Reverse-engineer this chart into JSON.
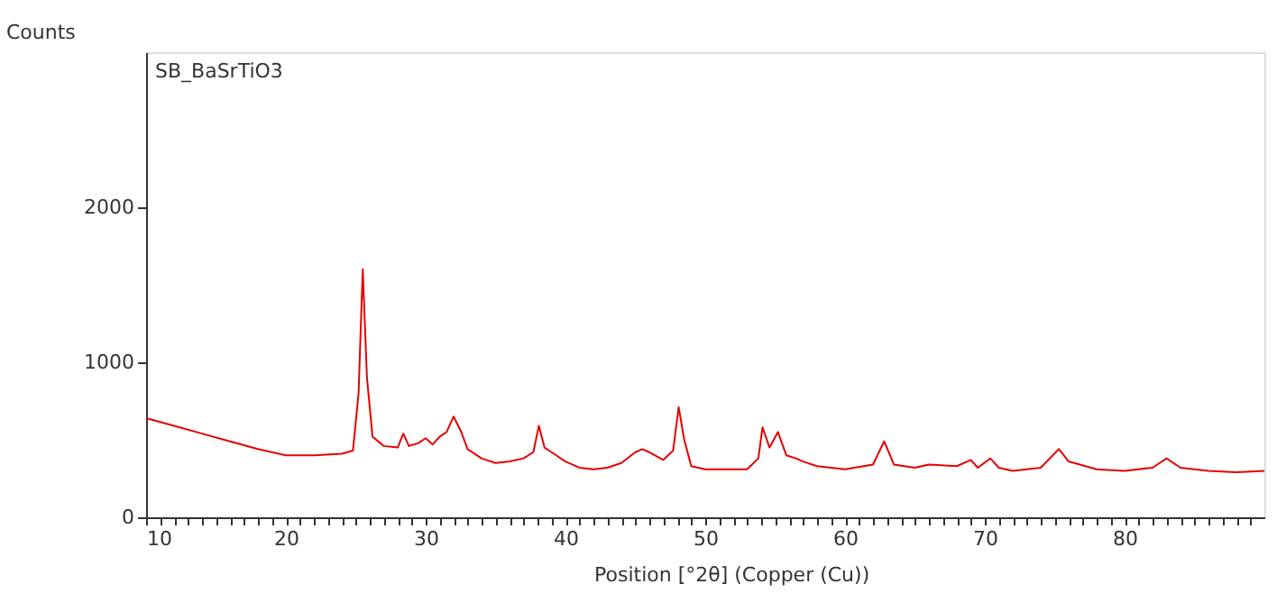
{
  "chart_data": {
    "type": "line",
    "ylabel": "Counts",
    "xlabel": "Position [°2θ] (Copper (Cu))",
    "annotations": [
      "SB_BaSrTiO3"
    ],
    "x": [
      10,
      12,
      14,
      16,
      18,
      20,
      22,
      24,
      24.8,
      25.2,
      25.5,
      25.8,
      26.2,
      27,
      28,
      28.4,
      28.8,
      29.5,
      30,
      30.5,
      31,
      31.5,
      32,
      32.5,
      33,
      34,
      35,
      36,
      37,
      37.7,
      38.1,
      38.5,
      39,
      40,
      41,
      42,
      43,
      44,
      45,
      45.5,
      46,
      47,
      47.7,
      48.1,
      48.5,
      49,
      50,
      52,
      53,
      53.8,
      54.1,
      54.6,
      55.2,
      55.8,
      56.5,
      57,
      58,
      60,
      62,
      62.8,
      63.5,
      65,
      66,
      68,
      69,
      69.5,
      70.4,
      71,
      72,
      74,
      75.3,
      76,
      78,
      80,
      82,
      83,
      84,
      86,
      88,
      90
    ],
    "series": [
      {
        "color": "#e60000",
        "values": [
          640,
          590,
          540,
          490,
          440,
          400,
          400,
          410,
          430,
          800,
          1600,
          900,
          520,
          460,
          450,
          540,
          460,
          480,
          510,
          470,
          520,
          550,
          650,
          560,
          440,
          380,
          350,
          360,
          380,
          420,
          590,
          450,
          420,
          360,
          320,
          310,
          320,
          350,
          420,
          440,
          420,
          370,
          430,
          710,
          500,
          330,
          310,
          310,
          310,
          380,
          580,
          450,
          550,
          400,
          380,
          360,
          330,
          310,
          340,
          490,
          340,
          320,
          340,
          330,
          370,
          320,
          380,
          320,
          300,
          320,
          440,
          360,
          310,
          300,
          320,
          380,
          320,
          300,
          290,
          300
        ]
      }
    ],
    "xlim": [
      10,
      90
    ],
    "ylim": [
      0,
      3000
    ],
    "xticks": [
      10,
      {
        "value": 11,
        "label": null
      },
      {
        "value": 12,
        "label": null
      },
      {
        "value": 13,
        "label": null
      },
      {
        "value": 14,
        "label": null
      },
      {
        "value": 15,
        "label": null
      },
      {
        "value": 16,
        "label": null
      },
      {
        "value": 17,
        "label": null
      },
      {
        "value": 18,
        "label": null
      },
      {
        "value": 19,
        "label": null
      },
      20,
      {
        "value": 21,
        "label": null
      },
      {
        "value": 22,
        "label": null
      },
      {
        "value": 23,
        "label": null
      },
      {
        "value": 24,
        "label": null
      },
      {
        "value": 25,
        "label": null
      },
      {
        "value": 26,
        "label": null
      },
      {
        "value": 27,
        "label": null
      },
      {
        "value": 28,
        "label": null
      },
      {
        "value": 29,
        "label": null
      },
      30,
      {
        "value": 31,
        "label": null
      },
      {
        "value": 32,
        "label": null
      },
      {
        "value": 33,
        "label": null
      },
      {
        "value": 34,
        "label": null
      },
      {
        "value": 35,
        "label": null
      },
      {
        "value": 36,
        "label": null
      },
      {
        "value": 37,
        "label": null
      },
      {
        "value": 38,
        "label": null
      },
      {
        "value": 39,
        "label": null
      },
      40,
      {
        "value": 41,
        "label": null
      },
      {
        "value": 42,
        "label": null
      },
      {
        "value": 43,
        "label": null
      },
      {
        "value": 44,
        "label": null
      },
      {
        "value": 45,
        "label": null
      },
      {
        "value": 46,
        "label": null
      },
      {
        "value": 47,
        "label": null
      },
      {
        "value": 48,
        "label": null
      },
      {
        "value": 49,
        "label": null
      },
      50,
      {
        "value": 51,
        "label": null
      },
      {
        "value": 52,
        "label": null
      },
      {
        "value": 53,
        "label": null
      },
      {
        "value": 54,
        "label": null
      },
      {
        "value": 55,
        "label": null
      },
      {
        "value": 56,
        "label": null
      },
      {
        "value": 57,
        "label": null
      },
      {
        "value": 58,
        "label": null
      },
      {
        "value": 59,
        "label": null
      },
      60,
      {
        "value": 61,
        "label": null
      },
      {
        "value": 62,
        "label": null
      },
      {
        "value": 63,
        "label": null
      },
      {
        "value": 64,
        "label": null
      },
      {
        "value": 65,
        "label": null
      },
      {
        "value": 66,
        "label": null
      },
      {
        "value": 67,
        "label": null
      },
      {
        "value": 68,
        "label": null
      },
      {
        "value": 69,
        "label": null
      },
      70,
      {
        "value": 71,
        "label": null
      },
      {
        "value": 72,
        "label": null
      },
      {
        "value": 73,
        "label": null
      },
      {
        "value": 74,
        "label": null
      },
      {
        "value": 75,
        "label": null
      },
      {
        "value": 76,
        "label": null
      },
      {
        "value": 77,
        "label": null
      },
      {
        "value": 78,
        "label": null
      },
      {
        "value": 79,
        "label": null
      },
      80,
      {
        "value": 81,
        "label": null
      },
      {
        "value": 82,
        "label": null
      },
      {
        "value": 83,
        "label": null
      },
      {
        "value": 84,
        "label": null
      },
      {
        "value": 85,
        "label": null
      },
      {
        "value": 86,
        "label": null
      },
      {
        "value": 87,
        "label": null
      },
      {
        "value": 88,
        "label": null
      },
      {
        "value": 89,
        "label": null
      }
    ],
    "yticks": [
      0,
      1000,
      2000
    ],
    "grid": false,
    "marker": "none",
    "line_style": "solid"
  }
}
